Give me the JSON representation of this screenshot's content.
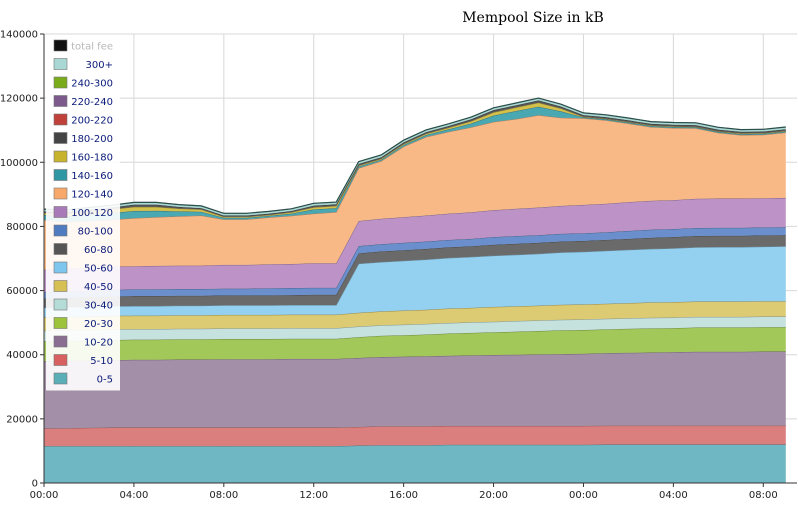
{
  "chart_data": {
    "type": "area",
    "stacked": true,
    "title": "Mempool Size in kB",
    "xlabel": "",
    "ylabel": "",
    "x_unit": "hours since first tick (00:00)",
    "x": [
      0,
      1,
      2,
      3,
      4,
      5,
      6,
      7,
      8,
      9,
      10,
      11,
      12,
      13,
      14,
      15,
      16,
      17,
      18,
      19,
      20,
      21,
      22,
      23,
      24,
      25,
      26,
      27,
      28,
      29,
      30,
      31,
      32,
      33
    ],
    "xlim": [
      0,
      33.5
    ],
    "xticks": [
      0,
      4,
      8,
      12,
      16,
      20,
      24,
      28,
      32
    ],
    "xtick_labels": [
      "00:00",
      "04:00",
      "08:00",
      "12:00",
      "16:00",
      "20:00",
      "00:00",
      "04:00",
      "08:00"
    ],
    "ylim": [
      0,
      140000
    ],
    "yticks": [
      0,
      20000,
      40000,
      60000,
      80000,
      100000,
      120000,
      140000
    ],
    "ytick_labels": [
      "0",
      "20000",
      "40000",
      "60000",
      "80000",
      "100000",
      "120000",
      "140000"
    ],
    "grid": true,
    "legend_position": "top-left",
    "legend": [
      {
        "name": "total fee",
        "color": "#111111"
      },
      {
        "name": "300+",
        "color": "#a9d8d4"
      },
      {
        "name": "240-300",
        "color": "#7aab1a"
      },
      {
        "name": "220-240",
        "color": "#7c5a8c"
      },
      {
        "name": "200-220",
        "color": "#c0403a"
      },
      {
        "name": "180-200",
        "color": "#444444"
      },
      {
        "name": "160-180",
        "color": "#c8b32e"
      },
      {
        "name": "140-160",
        "color": "#2f97a3"
      },
      {
        "name": "120-140",
        "color": "#f7a86a"
      },
      {
        "name": "100-120",
        "color": "#a97ab8"
      },
      {
        "name": "80-100",
        "color": "#4f7bc0"
      },
      {
        "name": "60-80",
        "color": "#555555"
      },
      {
        "name": "50-60",
        "color": "#7fc6ee"
      },
      {
        "name": "40-50",
        "color": "#d6c055"
      },
      {
        "name": "30-40",
        "color": "#b6dcd8"
      },
      {
        "name": "20-30",
        "color": "#9cc33a"
      },
      {
        "name": "10-20",
        "color": "#8a6e92"
      },
      {
        "name": "5-10",
        "color": "#d86060"
      },
      {
        "name": "0-5",
        "color": "#5aaeb8"
      }
    ],
    "series": [
      {
        "name": "0-5",
        "color": "#6fb7c2",
        "values": [
          11500,
          11500,
          11500,
          11500,
          11500,
          11500,
          11500,
          11500,
          11500,
          11500,
          11500,
          11500,
          11500,
          11500,
          11700,
          11800,
          11800,
          11800,
          11900,
          11900,
          11900,
          11900,
          11900,
          11900,
          11900,
          12000,
          12000,
          12000,
          12000,
          12000,
          12000,
          12000,
          12000,
          12000
        ]
      },
      {
        "name": "5-10",
        "color": "#db7e7e",
        "values": [
          5500,
          5600,
          5700,
          5800,
          5800,
          5800,
          5800,
          5800,
          5800,
          5800,
          5800,
          5800,
          5800,
          5800,
          5800,
          5900,
          5900,
          5900,
          5900,
          5900,
          5900,
          5900,
          5900,
          5900,
          5900,
          5900,
          5900,
          5900,
          5900,
          5900,
          5900,
          5900,
          5900,
          5900
        ]
      },
      {
        "name": "10-20",
        "color": "#a38fa7",
        "values": [
          21000,
          21000,
          21000,
          21000,
          21100,
          21100,
          21200,
          21200,
          21300,
          21300,
          21300,
          21400,
          21400,
          21400,
          21500,
          21600,
          21700,
          21800,
          21900,
          22000,
          22100,
          22200,
          22300,
          22400,
          22500,
          22600,
          22700,
          22800,
          22900,
          23000,
          23000,
          23000,
          23100,
          23100
        ]
      },
      {
        "name": "20-30",
        "color": "#a3c85a",
        "values": [
          6200,
          6200,
          6200,
          6300,
          6300,
          6300,
          6300,
          6300,
          6300,
          6300,
          6300,
          6300,
          6300,
          6300,
          6500,
          6600,
          6700,
          6800,
          6900,
          7000,
          7100,
          7200,
          7300,
          7400,
          7400,
          7400,
          7500,
          7500,
          7500,
          7600,
          7600,
          7600,
          7600,
          7600
        ]
      },
      {
        "name": "30-40",
        "color": "#c5e2de",
        "values": [
          3300,
          3300,
          3300,
          3300,
          3300,
          3300,
          3300,
          3300,
          3300,
          3300,
          3300,
          3300,
          3300,
          3300,
          3300,
          3300,
          3300,
          3300,
          3300,
          3300,
          3300,
          3300,
          3300,
          3300,
          3300,
          3300,
          3300,
          3300,
          3300,
          3300,
          3300,
          3300,
          3300,
          3300
        ]
      },
      {
        "name": "40-50",
        "color": "#dccb72",
        "values": [
          4200,
          4200,
          4200,
          4200,
          4200,
          4200,
          4200,
          4200,
          4200,
          4200,
          4200,
          4200,
          4200,
          4200,
          4300,
          4300,
          4400,
          4400,
          4500,
          4500,
          4600,
          4600,
          4600,
          4700,
          4700,
          4700,
          4700,
          4800,
          4800,
          4800,
          4800,
          4800,
          4800,
          4800
        ]
      },
      {
        "name": "50-60",
        "color": "#94d0ef",
        "values": [
          3000,
          3000,
          3000,
          3000,
          3000,
          3000,
          3000,
          3000,
          3000,
          3000,
          3000,
          3000,
          3000,
          3000,
          15300,
          15400,
          15500,
          15700,
          15800,
          15900,
          16000,
          16100,
          16200,
          16300,
          16400,
          16500,
          16600,
          16700,
          16800,
          16900,
          17000,
          17000,
          17000,
          17100
        ]
      },
      {
        "name": "60-80",
        "color": "#6a6a6a",
        "values": [
          2800,
          2900,
          3000,
          3000,
          3100,
          3100,
          3100,
          3100,
          3100,
          3100,
          3100,
          3100,
          3200,
          3200,
          3200,
          3300,
          3300,
          3300,
          3300,
          3300,
          3400,
          3400,
          3400,
          3400,
          3400,
          3400,
          3400,
          3500,
          3500,
          3500,
          3500,
          3500,
          3500,
          3500
        ]
      },
      {
        "name": "80-100",
        "color": "#6a8fcc",
        "values": [
          2000,
          2000,
          2100,
          2100,
          2100,
          2100,
          2100,
          2100,
          2100,
          2100,
          2200,
          2200,
          2200,
          2200,
          2300,
          2300,
          2300,
          2300,
          2300,
          2300,
          2400,
          2400,
          2400,
          2400,
          2400,
          2400,
          2500,
          2500,
          2500,
          2500,
          2500,
          2500,
          2500,
          2500
        ]
      },
      {
        "name": "100-120",
        "color": "#bd93c7",
        "values": [
          7000,
          7100,
          7100,
          7200,
          7200,
          7300,
          7300,
          7300,
          7400,
          7400,
          7500,
          7500,
          7600,
          7600,
          7800,
          7900,
          8000,
          8100,
          8200,
          8300,
          8400,
          8500,
          8600,
          8700,
          8800,
          8900,
          9000,
          9000,
          9000,
          9100,
          9100,
          9100,
          9100,
          9100
        ]
      },
      {
        "name": "120-140",
        "color": "#f9b987",
        "values": [
          15500,
          14500,
          14600,
          14700,
          15000,
          15200,
          15400,
          15600,
          14200,
          14200,
          14600,
          15000,
          15500,
          16000,
          16500,
          18000,
          22000,
          24500,
          25500,
          26500,
          27500,
          28000,
          28800,
          27500,
          27000,
          26000,
          24500,
          23000,
          22500,
          22000,
          20500,
          19800,
          19800,
          20400
        ]
      },
      {
        "name": "140-160",
        "color": "#4aa8b3",
        "values": [
          1600,
          1800,
          2000,
          2100,
          2200,
          2000,
          1500,
          1200,
          500,
          500,
          500,
          700,
          1300,
          1200,
          500,
          400,
          500,
          600,
          800,
          1200,
          2000,
          2500,
          2600,
          2000,
          300,
          300,
          300,
          300,
          300,
          300,
          300,
          300,
          300,
          300
        ]
      },
      {
        "name": "160-180",
        "color": "#d3c04a",
        "values": [
          600,
          800,
          900,
          1100,
          1300,
          1200,
          900,
          700,
          300,
          300,
          300,
          400,
          700,
          700,
          300,
          300,
          300,
          400,
          500,
          700,
          1000,
          1100,
          1300,
          900,
          200,
          200,
          200,
          200,
          200,
          200,
          200,
          200,
          200,
          200
        ]
      },
      {
        "name": "180-200",
        "color": "#555555",
        "values": [
          500,
          600,
          600,
          600,
          700,
          700,
          500,
          400,
          400,
          400,
          400,
          400,
          500,
          500,
          500,
          500,
          500,
          500,
          500,
          600,
          700,
          700,
          700,
          600,
          500,
          500,
          500,
          500,
          500,
          500,
          500,
          500,
          500,
          500
        ]
      },
      {
        "name": "300+",
        "color": "#a9d8d4",
        "values": [
          700,
          700,
          700,
          700,
          700,
          700,
          700,
          700,
          700,
          700,
          700,
          700,
          700,
          700,
          700,
          700,
          700,
          700,
          700,
          700,
          700,
          700,
          700,
          700,
          700,
          700,
          700,
          700,
          700,
          700,
          700,
          700,
          700,
          700
        ]
      }
    ]
  }
}
